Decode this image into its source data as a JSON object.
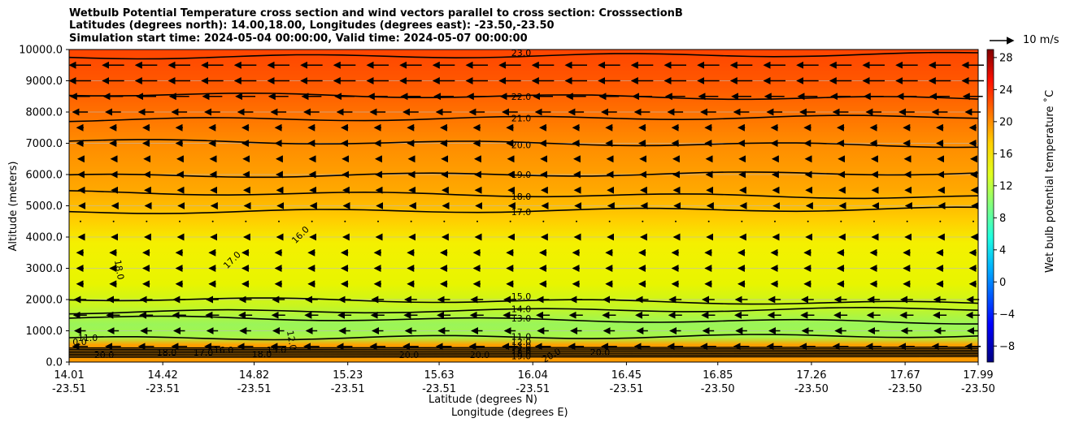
{
  "chart_data": {
    "type": "heatmap",
    "title_lines": [
      "Wetbulb Potential Temperature cross section and wind vectors parallel to cross section: CrosssectionB",
      "Latitudes (degrees north): 14.00,18.00, Longitudes (degrees east): -23.50,-23.50",
      "Simulation start time: 2024-05-04 00:00:00, Valid time: 2024-05-07 00:00:00"
    ],
    "xlabel_lat": "Latitude (degrees N)",
    "xlabel_lon": "Longitude (degrees E)",
    "ylabel": "Altitude (meters)",
    "ylim": [
      0,
      10000
    ],
    "xlim": [
      14.01,
      17.99
    ],
    "yticks": [
      "0.0",
      "1000.0",
      "2000.0",
      "3000.0",
      "4000.0",
      "5000.0",
      "6000.0",
      "7000.0",
      "8000.0",
      "9000.0",
      "10000.0"
    ],
    "xticks": [
      {
        "lat": "14.01",
        "lon": "-23.51"
      },
      {
        "lat": "14.42",
        "lon": "-23.51"
      },
      {
        "lat": "14.82",
        "lon": "-23.51"
      },
      {
        "lat": "15.23",
        "lon": "-23.51"
      },
      {
        "lat": "15.63",
        "lon": "-23.51"
      },
      {
        "lat": "16.04",
        "lon": "-23.51"
      },
      {
        "lat": "16.45",
        "lon": "-23.51"
      },
      {
        "lat": "16.85",
        "lon": "-23.50"
      },
      {
        "lat": "17.26",
        "lon": "-23.50"
      },
      {
        "lat": "17.67",
        "lon": "-23.50"
      },
      {
        "lat": "17.99",
        "lon": "-23.50"
      }
    ],
    "colorbar": {
      "label": "Wet bulb potential temperature ˚C",
      "range": [
        -10,
        29
      ],
      "ticks": [
        "−8",
        "−4",
        "0",
        "4",
        "8",
        "12",
        "16",
        "20",
        "24",
        "28"
      ]
    },
    "quiver_key": "10 m/s",
    "contour_labels_right": [
      "23.0",
      "22.0",
      "21.0",
      "20.0",
      "19.0",
      "18.0",
      "17.0",
      "15.0",
      "14.0",
      "13.0",
      "11.0",
      "12.0",
      "13.0",
      "17.0",
      "18.0",
      "19.0"
    ],
    "contour_labels_left": [
      "16.0",
      "17.0",
      "18.0",
      "11.0",
      "20.0",
      "18.0",
      "17.0",
      "16.0",
      "18.0",
      "12.0",
      "15.0",
      "20.0",
      "20.0",
      "20.0",
      "20.0",
      "0.0"
    ],
    "contour_levels": [
      {
        "level": "23.0",
        "alt": 9800
      },
      {
        "level": "22.0",
        "alt": 8500
      },
      {
        "level": "21.0",
        "alt": 7800
      },
      {
        "level": "20.0",
        "alt": 7000
      },
      {
        "level": "19.0",
        "alt": 6000
      },
      {
        "level": "18.0",
        "alt": 5350
      },
      {
        "level": "17.0",
        "alt": 4850
      },
      {
        "level": "15.0",
        "alt": 1950
      },
      {
        "level": "14.0",
        "alt": 1650
      },
      {
        "level": "13.0",
        "alt": 1350
      },
      {
        "level": "11.0",
        "alt": 800
      }
    ],
    "wind_profile": [
      {
        "alt": 9500,
        "u": -1.0
      },
      {
        "alt": 9000,
        "u": -1.0
      },
      {
        "alt": 8500,
        "u": -0.9
      },
      {
        "alt": 8000,
        "u": -0.7
      },
      {
        "alt": 7500,
        "u": -0.3
      },
      {
        "alt": 7000,
        "u": -0.3
      },
      {
        "alt": 6500,
        "u": -0.2
      },
      {
        "alt": 6000,
        "u": -0.2
      },
      {
        "alt": 5500,
        "u": -0.15
      },
      {
        "alt": 5000,
        "u": -0.1
      },
      {
        "alt": 4500,
        "u": -0.05
      },
      {
        "alt": 4000,
        "u": -0.15
      },
      {
        "alt": 3500,
        "u": -0.3
      },
      {
        "alt": 3000,
        "u": -0.3
      },
      {
        "alt": 2500,
        "u": -0.3
      },
      {
        "alt": 2000,
        "u": -0.55
      },
      {
        "alt": 1500,
        "u": -0.6
      },
      {
        "alt": 1000,
        "u": -0.5
      },
      {
        "alt": 500,
        "u": -0.7
      }
    ]
  }
}
